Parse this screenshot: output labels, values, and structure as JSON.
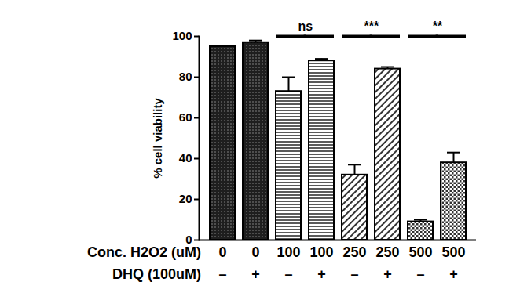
{
  "chart_data": {
    "type": "bar",
    "ylabel": "% cell viability",
    "x_label": "Conc. H2O2 (uM)",
    "categories": [
      "0",
      "0",
      "100",
      "100",
      "250",
      "250",
      "500",
      "500"
    ],
    "treatment": {
      "label": "DHQ (100uM)",
      "values": [
        "–",
        "+",
        "–",
        "+",
        "–",
        "+",
        "–",
        "+"
      ]
    },
    "values": [
      95,
      97,
      73,
      88,
      32,
      84,
      9,
      38
    ],
    "errors": [
      0,
      1,
      7,
      1,
      5,
      1,
      1,
      5
    ],
    "color": "#000000",
    "ylim": [
      0,
      100
    ],
    "yticks": [
      0,
      20,
      40,
      60,
      80,
      100
    ],
    "significance": [
      {
        "from": 2,
        "to": 3,
        "label": "ns",
        "y": 100
      },
      {
        "from": 4,
        "to": 5,
        "label": "***",
        "y": 100
      },
      {
        "from": 6,
        "to": 7,
        "label": "**",
        "y": 100
      }
    ]
  }
}
